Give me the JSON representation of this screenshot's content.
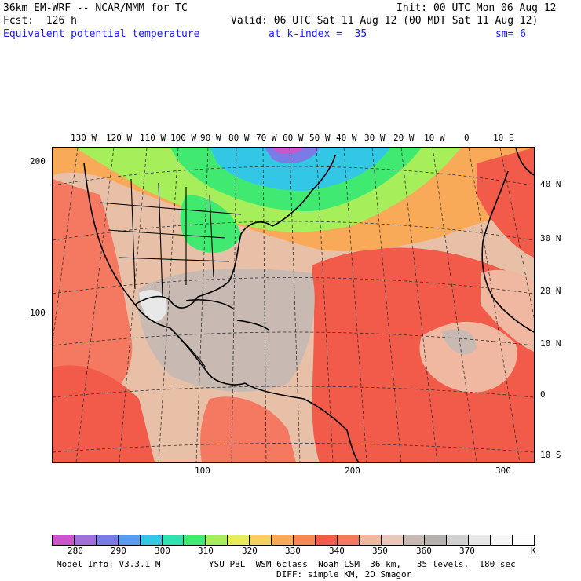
{
  "header": {
    "model_line": "36km EM-WRF -- NCAR/MMM for TC",
    "init_line": "Init: 00 UTC Mon 06 Aug 12",
    "fcst_line": "Fcst:  126 h",
    "valid_line": "Valid: 06 UTC Sat 11 Aug 12 (00 MDT Sat 11 Aug 12)",
    "field_name": "Equivalent potential temperature",
    "level_label": "at k-index =  35",
    "smoothing": "sm= 6"
  },
  "map": {
    "top_lon_labels": [
      "130 W",
      "120 W",
      "110 W",
      "100 W",
      "90 W",
      "80 W",
      "70 W",
      "60 W",
      "50 W",
      "40 W",
      "30 W",
      "20 W",
      "10 W",
      "0",
      "10 E"
    ],
    "right_lat_labels": [
      "40 N",
      "30 N",
      "20 N",
      "10 N",
      "0",
      "10 S"
    ],
    "left_grid_labels": [
      "200",
      "100"
    ],
    "bottom_grid_labels": [
      "100",
      "200",
      "300"
    ]
  },
  "colorbar": {
    "colors": [
      "#cc55cc",
      "#a070d8",
      "#7b7be6",
      "#5a9cf0",
      "#33c7e6",
      "#2fe0b0",
      "#40ea70",
      "#a6ee5a",
      "#e8ee5a",
      "#f8d060",
      "#f8aa58",
      "#f58855",
      "#f25a4a",
      "#f57860",
      "#f0b8a0",
      "#e8c8b8",
      "#c8bab2",
      "#b4b0ae",
      "#d0d0d0",
      "#e8e8e8",
      "#f6f6f6",
      "#ffffff"
    ],
    "tick_labels": [
      "280",
      "290",
      "300",
      "310",
      "320",
      "330",
      "340",
      "350",
      "360",
      "370"
    ],
    "unit": "K"
  },
  "footer": {
    "model_info": "Model Info: V3.3.1 M",
    "physics": "YSU PBL  WSM 6class  Noah LSM  36 km,   35 levels,  180 sec",
    "diffusion": "DIFF: simple KM, 2D Smagor"
  }
}
